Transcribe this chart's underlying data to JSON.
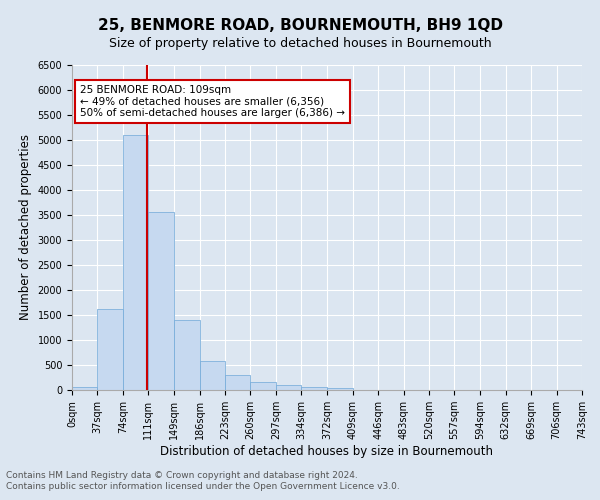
{
  "title": "25, BENMORE ROAD, BOURNEMOUTH, BH9 1QD",
  "subtitle": "Size of property relative to detached houses in Bournemouth",
  "xlabel": "Distribution of detached houses by size in Bournemouth",
  "ylabel": "Number of detached properties",
  "bar_values": [
    70,
    1620,
    5100,
    3570,
    1400,
    590,
    305,
    155,
    110,
    65,
    35,
    0,
    0,
    0,
    0,
    0,
    0,
    0,
    0,
    0
  ],
  "bin_edges": [
    0,
    37,
    74,
    111,
    149,
    186,
    223,
    260,
    297,
    334,
    372,
    409,
    446,
    483,
    520,
    557,
    594,
    632,
    669,
    706,
    743
  ],
  "tick_labels": [
    "0sqm",
    "37sqm",
    "74sqm",
    "111sqm",
    "149sqm",
    "186sqm",
    "223sqm",
    "260sqm",
    "297sqm",
    "334sqm",
    "372sqm",
    "409sqm",
    "446sqm",
    "483sqm",
    "520sqm",
    "557sqm",
    "594sqm",
    "632sqm",
    "669sqm",
    "706sqm",
    "743sqm"
  ],
  "bar_color": "#c6d9f0",
  "bar_edge_color": "#6fa8d8",
  "vline_x": 109,
  "vline_color": "#cc0000",
  "ylim": [
    0,
    6500
  ],
  "yticks": [
    0,
    500,
    1000,
    1500,
    2000,
    2500,
    3000,
    3500,
    4000,
    4500,
    5000,
    5500,
    6000,
    6500
  ],
  "annotation_text": "25 BENMORE ROAD: 109sqm\n← 49% of detached houses are smaller (6,356)\n50% of semi-detached houses are larger (6,386) →",
  "annotation_box_color": "#ffffff",
  "annotation_box_edge_color": "#cc0000",
  "footnote_line1": "Contains HM Land Registry data © Crown copyright and database right 2024.",
  "footnote_line2": "Contains public sector information licensed under the Open Government Licence v3.0.",
  "background_color": "#dce6f1",
  "plot_bg_color": "#dce6f1",
  "grid_color": "#ffffff",
  "title_fontsize": 11,
  "subtitle_fontsize": 9,
  "xlabel_fontsize": 8.5,
  "ylabel_fontsize": 8.5,
  "tick_fontsize": 7,
  "footnote_fontsize": 6.5,
  "annotation_fontsize": 7.5
}
